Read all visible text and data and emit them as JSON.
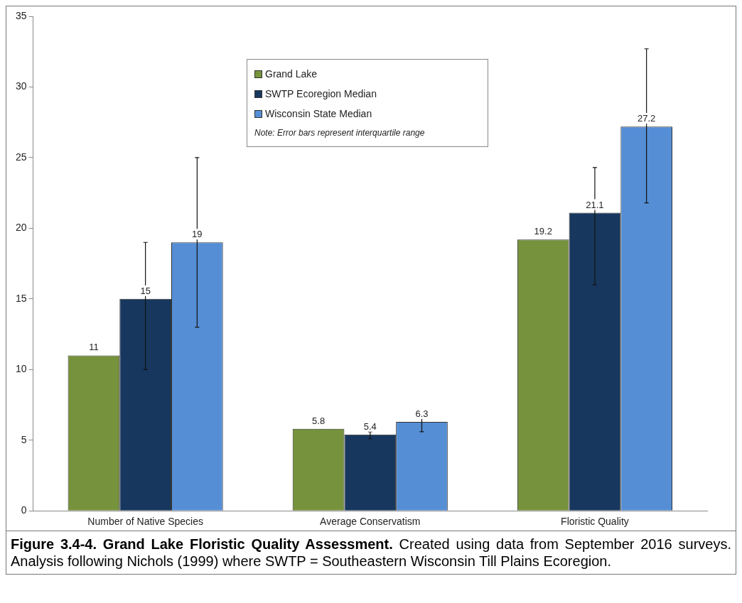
{
  "chart_data": {
    "type": "bar",
    "categories": [
      "Number of Native Species",
      "Average Conservatism",
      "Floristic Quality"
    ],
    "series": [
      {
        "name": "Grand Lake",
        "color": "#76923c",
        "values": [
          11,
          5.8,
          19.2
        ]
      },
      {
        "name": "SWTP Ecoregion Median",
        "color": "#17375e",
        "values": [
          15,
          5.4,
          21.1
        ],
        "errors": [
          [
            10,
            19
          ],
          [
            5.1,
            5.6
          ],
          [
            16,
            24.3
          ]
        ]
      },
      {
        "name": "Wisconsin State Median",
        "color": "#558ed5",
        "values": [
          19,
          6.3,
          27.2
        ],
        "errors": [
          [
            13,
            25
          ],
          [
            5.6,
            6.8
          ],
          [
            21.8,
            32.7
          ]
        ]
      }
    ],
    "ylim": [
      0,
      35
    ],
    "yticks": [
      0,
      5,
      10,
      15,
      20,
      25,
      30,
      35
    ],
    "grid": false,
    "legend": "top",
    "data_labels": true,
    "annotations": [
      "Note: Error bars represent interquartile range",
      "Figure 3.4-4.  Grand Lake Floristic Quality Assessment.",
      "Created using data from September 2016 surveys.  Analysis following Nichols (1999) where SWTP = Southeastern Wisconsin Till Plains Ecoregion."
    ]
  }
}
